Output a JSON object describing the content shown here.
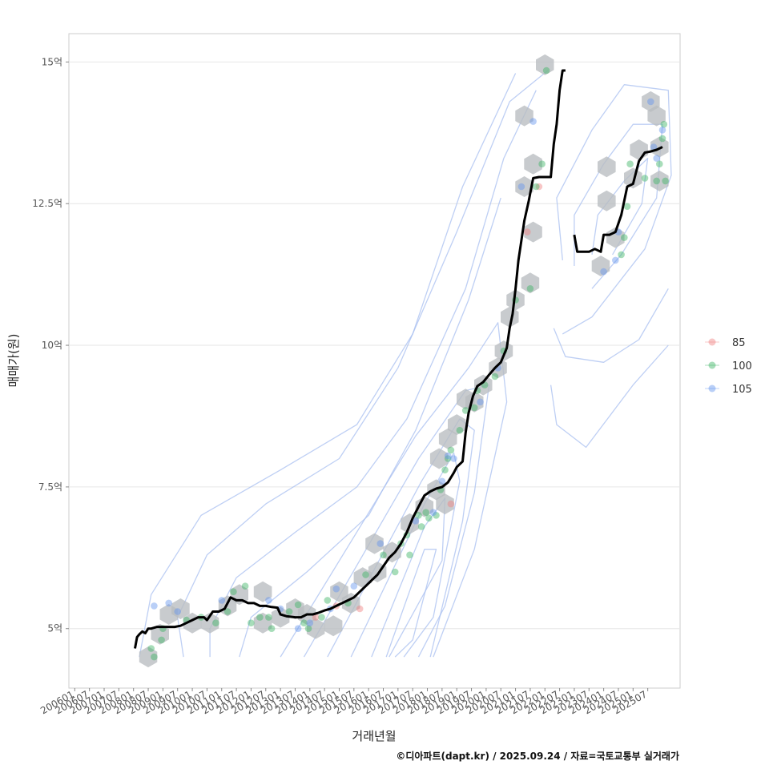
{
  "chart_data": {
    "type": "line",
    "title": "",
    "xlabel": "거래년월",
    "ylabel": "매매가(원)",
    "caption": "©디아파트(dapt.kr) / 2025.09.24 / 자료=국토교통부 실거래가",
    "y_tick_labels": [
      "5억",
      "7.5억",
      "10억",
      "12.5억",
      "15억"
    ],
    "y_tick_values": [
      5,
      7.5,
      10,
      12.5,
      15
    ],
    "ylim": [
      3.95,
      15.5
    ],
    "xlim": [
      2005.8,
      2026.6
    ],
    "x_tick_labels": [
      "200601",
      "200607",
      "200701",
      "200707",
      "200801",
      "200807",
      "200901",
      "200907",
      "201001",
      "201007",
      "201101",
      "201107",
      "201201",
      "201207",
      "201301",
      "201307",
      "201401",
      "201407",
      "201501",
      "201507",
      "201601",
      "201607",
      "201701",
      "201707",
      "201801",
      "201807",
      "201901",
      "201907",
      "202001",
      "202007",
      "202101",
      "202107",
      "202201",
      "202207",
      "202301",
      "202307",
      "202401",
      "202407",
      "202501",
      "202507"
    ],
    "grid": true,
    "legend": {
      "placement": "right",
      "entries": [
        {
          "label": "85",
          "color": "#f08080"
        },
        {
          "label": "100",
          "color": "#3cb464"
        },
        {
          "label": "105",
          "color": "#6495ed"
        }
      ]
    },
    "trend_series": [
      {
        "name": "",
        "color": "#000000",
        "points": [
          [
            2008.05,
            4.65
          ],
          [
            2008.12,
            4.85
          ],
          [
            2008.2,
            4.9
          ],
          [
            2008.3,
            4.95
          ],
          [
            2008.4,
            4.92
          ],
          [
            2008.5,
            5.0
          ],
          [
            2008.6,
            5.0
          ],
          [
            2008.8,
            5.03
          ],
          [
            2009.0,
            5.03
          ],
          [
            2009.2,
            5.03
          ],
          [
            2009.4,
            5.03
          ],
          [
            2009.6,
            5.05
          ],
          [
            2009.8,
            5.1
          ],
          [
            2010.0,
            5.15
          ],
          [
            2010.2,
            5.2
          ],
          [
            2010.4,
            5.2
          ],
          [
            2010.5,
            5.15
          ],
          [
            2010.7,
            5.3
          ],
          [
            2010.9,
            5.3
          ],
          [
            2011.1,
            5.35
          ],
          [
            2011.3,
            5.55
          ],
          [
            2011.5,
            5.5
          ],
          [
            2011.7,
            5.5
          ],
          [
            2011.9,
            5.45
          ],
          [
            2012.1,
            5.45
          ],
          [
            2012.3,
            5.4
          ],
          [
            2012.5,
            5.4
          ],
          [
            2012.7,
            5.38
          ],
          [
            2012.9,
            5.37
          ],
          [
            2013.0,
            5.25
          ],
          [
            2013.2,
            5.22
          ],
          [
            2013.5,
            5.2
          ],
          [
            2013.7,
            5.2
          ],
          [
            2013.9,
            5.25
          ],
          [
            2014.1,
            5.25
          ],
          [
            2014.3,
            5.28
          ],
          [
            2014.5,
            5.32
          ],
          [
            2014.7,
            5.35
          ],
          [
            2014.9,
            5.4
          ],
          [
            2015.1,
            5.45
          ],
          [
            2015.3,
            5.5
          ],
          [
            2015.5,
            5.55
          ],
          [
            2015.7,
            5.65
          ],
          [
            2015.9,
            5.75
          ],
          [
            2016.1,
            5.85
          ],
          [
            2016.3,
            5.95
          ],
          [
            2016.5,
            6.1
          ],
          [
            2016.7,
            6.25
          ],
          [
            2016.9,
            6.35
          ],
          [
            2017.1,
            6.5
          ],
          [
            2017.3,
            6.7
          ],
          [
            2017.5,
            6.95
          ],
          [
            2017.7,
            7.15
          ],
          [
            2017.9,
            7.35
          ],
          [
            2018.1,
            7.42
          ],
          [
            2018.3,
            7.47
          ],
          [
            2018.5,
            7.5
          ],
          [
            2018.7,
            7.58
          ],
          [
            2018.9,
            7.75
          ],
          [
            2019.0,
            7.85
          ],
          [
            2019.2,
            7.95
          ],
          [
            2019.3,
            8.45
          ],
          [
            2019.4,
            8.8
          ],
          [
            2019.55,
            9.1
          ],
          [
            2019.7,
            9.28
          ],
          [
            2019.9,
            9.35
          ],
          [
            2020.1,
            9.48
          ],
          [
            2020.3,
            9.6
          ],
          [
            2020.5,
            9.7
          ],
          [
            2020.7,
            9.95
          ],
          [
            2020.8,
            10.3
          ],
          [
            2020.9,
            10.55
          ],
          [
            2021.0,
            11.0
          ],
          [
            2021.1,
            11.5
          ],
          [
            2021.2,
            11.85
          ],
          [
            2021.3,
            12.2
          ],
          [
            2021.45,
            12.55
          ],
          [
            2021.6,
            12.95
          ],
          [
            2021.8,
            12.97
          ],
          [
            2022.0,
            12.97
          ],
          [
            2022.2,
            12.97
          ],
          [
            2022.3,
            13.55
          ],
          [
            2022.4,
            13.9
          ],
          [
            2022.5,
            14.5
          ],
          [
            2022.6,
            14.85
          ],
          [
            2022.7,
            14.85
          ]
        ]
      },
      {
        "name": "",
        "color": "#000000",
        "points": [
          [
            2023.0,
            11.95
          ],
          [
            2023.1,
            11.65
          ],
          [
            2023.3,
            11.65
          ],
          [
            2023.5,
            11.65
          ],
          [
            2023.7,
            11.7
          ],
          [
            2023.9,
            11.65
          ],
          [
            2024.0,
            11.95
          ],
          [
            2024.2,
            11.95
          ],
          [
            2024.4,
            12.0
          ],
          [
            2024.6,
            12.3
          ],
          [
            2024.8,
            12.8
          ],
          [
            2025.0,
            12.85
          ],
          [
            2025.2,
            13.25
          ],
          [
            2025.4,
            13.4
          ],
          [
            2025.6,
            13.42
          ],
          [
            2025.8,
            13.45
          ],
          [
            2026.0,
            13.5
          ]
        ]
      }
    ],
    "hexbin_centers": [
      [
        2008.5,
        4.5
      ],
      [
        2008.9,
        4.9
      ],
      [
        2009.2,
        5.25
      ],
      [
        2009.6,
        5.35
      ],
      [
        2010.0,
        5.1
      ],
      [
        2010.6,
        5.1
      ],
      [
        2011.2,
        5.4
      ],
      [
        2011.6,
        5.6
      ],
      [
        2012.4,
        5.65
      ],
      [
        2012.4,
        5.1
      ],
      [
        2013.0,
        5.2
      ],
      [
        2013.5,
        5.35
      ],
      [
        2013.9,
        5.25
      ],
      [
        2014.2,
        5.0
      ],
      [
        2014.8,
        5.05
      ],
      [
        2015.0,
        5.65
      ],
      [
        2015.4,
        5.45
      ],
      [
        2015.8,
        5.9
      ],
      [
        2016.2,
        6.5
      ],
      [
        2016.3,
        6.0
      ],
      [
        2016.8,
        6.35
      ],
      [
        2017.4,
        6.85
      ],
      [
        2017.9,
        7.15
      ],
      [
        2018.3,
        7.45
      ],
      [
        2018.6,
        7.2
      ],
      [
        2018.4,
        8.0
      ],
      [
        2018.7,
        8.35
      ],
      [
        2019.0,
        8.6
      ],
      [
        2019.3,
        9.05
      ],
      [
        2019.6,
        9.0
      ],
      [
        2019.9,
        9.3
      ],
      [
        2020.4,
        9.6
      ],
      [
        2020.6,
        9.9
      ],
      [
        2020.8,
        10.5
      ],
      [
        2021.0,
        10.8
      ],
      [
        2021.5,
        11.1
      ],
      [
        2021.6,
        12.0
      ],
      [
        2021.3,
        12.8
      ],
      [
        2021.6,
        13.2
      ],
      [
        2021.3,
        14.05
      ],
      [
        2022.0,
        14.95
      ],
      [
        2023.9,
        11.4
      ],
      [
        2024.4,
        11.9
      ],
      [
        2024.1,
        12.55
      ],
      [
        2024.1,
        13.15
      ],
      [
        2025.0,
        12.95
      ],
      [
        2025.2,
        13.45
      ],
      [
        2025.6,
        14.3
      ],
      [
        2025.8,
        14.05
      ],
      [
        2025.9,
        13.5
      ],
      [
        2025.9,
        12.9
      ]
    ],
    "points_85": [
      [
        2014.2,
        5.2
      ],
      [
        2014.9,
        5.4
      ],
      [
        2015.7,
        5.35
      ],
      [
        2018.8,
        7.2
      ],
      [
        2021.4,
        12.0
      ],
      [
        2021.8,
        12.8
      ]
    ],
    "points_100": [
      [
        2008.6,
        4.65
      ],
      [
        2008.7,
        4.5
      ],
      [
        2008.95,
        4.8
      ],
      [
        2009.0,
        5.0
      ],
      [
        2009.8,
        5.15
      ],
      [
        2010.3,
        5.2
      ],
      [
        2010.8,
        5.1
      ],
      [
        2011.2,
        5.3
      ],
      [
        2011.4,
        5.65
      ],
      [
        2011.8,
        5.75
      ],
      [
        2012.0,
        5.1
      ],
      [
        2012.3,
        5.2
      ],
      [
        2012.6,
        5.2
      ],
      [
        2012.7,
        5.0
      ],
      [
        2013.3,
        5.3
      ],
      [
        2013.6,
        5.42
      ],
      [
        2013.8,
        5.1
      ],
      [
        2013.95,
        5.0
      ],
      [
        2014.4,
        5.2
      ],
      [
        2014.6,
        5.5
      ],
      [
        2015.3,
        5.45
      ],
      [
        2015.9,
        5.95
      ],
      [
        2016.5,
        6.3
      ],
      [
        2016.9,
        6.0
      ],
      [
        2017.1,
        6.5
      ],
      [
        2017.3,
        6.65
      ],
      [
        2017.4,
        6.3
      ],
      [
        2017.7,
        7.0
      ],
      [
        2017.8,
        6.8
      ],
      [
        2017.95,
        7.05
      ],
      [
        2018.05,
        6.95
      ],
      [
        2018.3,
        7.0
      ],
      [
        2018.45,
        7.45
      ],
      [
        2018.6,
        7.8
      ],
      [
        2018.7,
        8.0
      ],
      [
        2018.8,
        8.15
      ],
      [
        2019.1,
        8.5
      ],
      [
        2019.3,
        8.85
      ],
      [
        2019.6,
        8.9
      ],
      [
        2019.7,
        9.2
      ],
      [
        2019.95,
        9.3
      ],
      [
        2020.3,
        9.45
      ],
      [
        2020.6,
        9.9
      ],
      [
        2021.0,
        10.8
      ],
      [
        2021.5,
        11.0
      ],
      [
        2021.7,
        12.8
      ],
      [
        2021.9,
        13.2
      ],
      [
        2022.05,
        14.85
      ],
      [
        2024.6,
        11.6
      ],
      [
        2024.7,
        11.9
      ],
      [
        2024.8,
        12.45
      ],
      [
        2024.9,
        13.2
      ],
      [
        2025.4,
        12.95
      ],
      [
        2025.8,
        12.9
      ],
      [
        2025.9,
        13.2
      ],
      [
        2026.0,
        13.65
      ],
      [
        2026.05,
        13.9
      ],
      [
        2026.1,
        12.9
      ]
    ],
    "points_105": [
      [
        2008.7,
        5.4
      ],
      [
        2009.2,
        5.45
      ],
      [
        2009.5,
        5.3
      ],
      [
        2011.0,
        5.5
      ],
      [
        2012.6,
        5.5
      ],
      [
        2013.0,
        5.35
      ],
      [
        2013.6,
        5.0
      ],
      [
        2014.0,
        5.1
      ],
      [
        2014.7,
        5.35
      ],
      [
        2014.9,
        5.7
      ],
      [
        2015.5,
        5.75
      ],
      [
        2016.4,
        6.5
      ],
      [
        2017.6,
        6.9
      ],
      [
        2018.2,
        7.05
      ],
      [
        2018.5,
        7.6
      ],
      [
        2018.7,
        8.05
      ],
      [
        2018.9,
        8.0
      ],
      [
        2019.8,
        9.0
      ],
      [
        2020.4,
        9.6
      ],
      [
        2021.2,
        12.8
      ],
      [
        2021.6,
        13.95
      ],
      [
        2024.0,
        11.3
      ],
      [
        2024.4,
        11.5
      ],
      [
        2024.5,
        12.0
      ],
      [
        2025.6,
        14.3
      ],
      [
        2025.7,
        13.5
      ],
      [
        2025.8,
        13.3
      ],
      [
        2026.0,
        13.8
      ]
    ]
  }
}
